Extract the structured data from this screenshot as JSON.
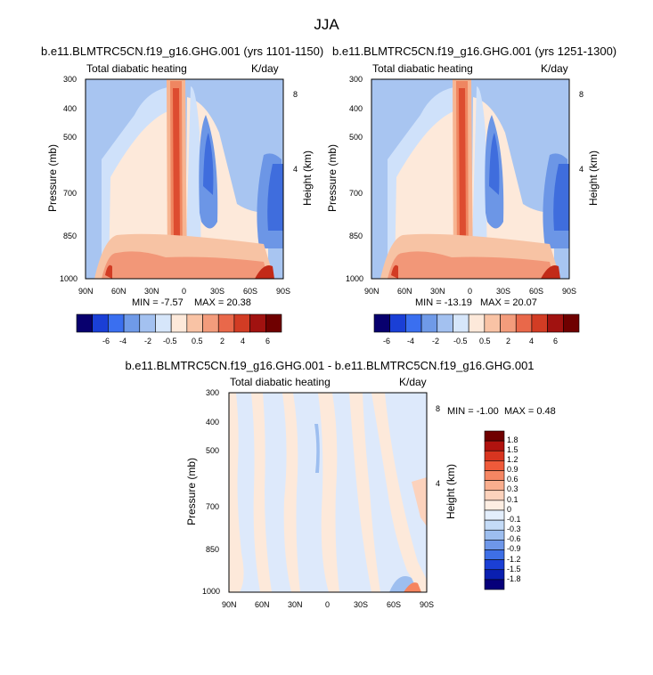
{
  "title": "JJA",
  "chart_data": [
    {
      "type": "heatmap",
      "title": "b.e11.BLMTRC5CN.f19_g16.GHG.001 (yrs 1101-1150)",
      "left_string": "Total diabatic heating",
      "right_string": "K/day",
      "xlabel": "",
      "ylabel": "Pressure (mb)",
      "right_axis_label": "Height (km)",
      "x_ticks": [
        "90N",
        "60N",
        "30N",
        "0",
        "30S",
        "60S",
        "90S"
      ],
      "y_ticks": [
        "300",
        "400",
        "500",
        "700",
        "850",
        "1000"
      ],
      "right_ticks": [
        "8",
        "4"
      ],
      "xlim": [
        90,
        -90
      ],
      "ylim": [
        1000,
        300
      ],
      "min_label": "MIN =  -7.57",
      "max_label": "MAX =  20.38",
      "levels": [
        "-6",
        "-4",
        "-2",
        "-0.5",
        "0.5",
        "2",
        "4",
        "6"
      ]
    },
    {
      "type": "heatmap",
      "title": "b.e11.BLMTRC5CN.f19_g16.GHG.001 (yrs 1251-1300)",
      "left_string": "Total diabatic heating",
      "right_string": "K/day",
      "xlabel": "",
      "ylabel": "Pressure (mb)",
      "right_axis_label": "Height (km)",
      "x_ticks": [
        "90N",
        "60N",
        "30N",
        "0",
        "30S",
        "60S",
        "90S"
      ],
      "y_ticks": [
        "300",
        "400",
        "500",
        "700",
        "850",
        "1000"
      ],
      "right_ticks": [
        "8",
        "4"
      ],
      "xlim": [
        90,
        -90
      ],
      "ylim": [
        1000,
        300
      ],
      "min_label": "MIN = -13.19",
      "max_label": "MAX =  20.07",
      "levels": [
        "-6",
        "-4",
        "-2",
        "-0.5",
        "0.5",
        "2",
        "4",
        "6"
      ]
    },
    {
      "type": "heatmap",
      "title": "b.e11.BLMTRC5CN.f19_g16.GHG.001 - b.e11.BLMTRC5CN.f19_g16.GHG.001",
      "left_string": "Total diabatic heating",
      "right_string": "K/day",
      "xlabel": "",
      "ylabel": "Pressure (mb)",
      "right_axis_label": "Height (km)",
      "x_ticks": [
        "90N",
        "60N",
        "30N",
        "0",
        "30S",
        "60S",
        "90S"
      ],
      "y_ticks": [
        "300",
        "400",
        "500",
        "700",
        "850",
        "1000"
      ],
      "right_ticks": [
        "8",
        "4"
      ],
      "xlim": [
        90,
        -90
      ],
      "ylim": [
        1000,
        300
      ],
      "min_label": "MIN =  -1.00",
      "max_label": "MAX =   0.48",
      "levels": [
        "1.8",
        "1.5",
        "1.2",
        "0.9",
        "0.6",
        "0.3",
        "0.1",
        "0",
        "-0.1",
        "-0.3",
        "-0.6",
        "-0.9",
        "-1.2",
        "-1.5",
        "-1.8"
      ]
    }
  ],
  "colors": {
    "full_scale": [
      "#08006e",
      "#1a3fd6",
      "#3a6ff0",
      "#6f9ae8",
      "#a3c1f0",
      "#d6e6fa",
      "#fde9da",
      "#f9c3a5",
      "#f39c7c",
      "#e9684a",
      "#d23c24",
      "#a11210",
      "#6f0000"
    ],
    "diff_scale": [
      "#6f0000",
      "#b0130f",
      "#d83520",
      "#ef5a3a",
      "#f58663",
      "#f9ae8e",
      "#fcd2bc",
      "#fdeee3",
      "#e3eefc",
      "#c4dbf7",
      "#9dbeef",
      "#6e97e9",
      "#3e6fe6",
      "#1b3fd5",
      "#0a1fb0",
      "#06007a"
    ]
  }
}
